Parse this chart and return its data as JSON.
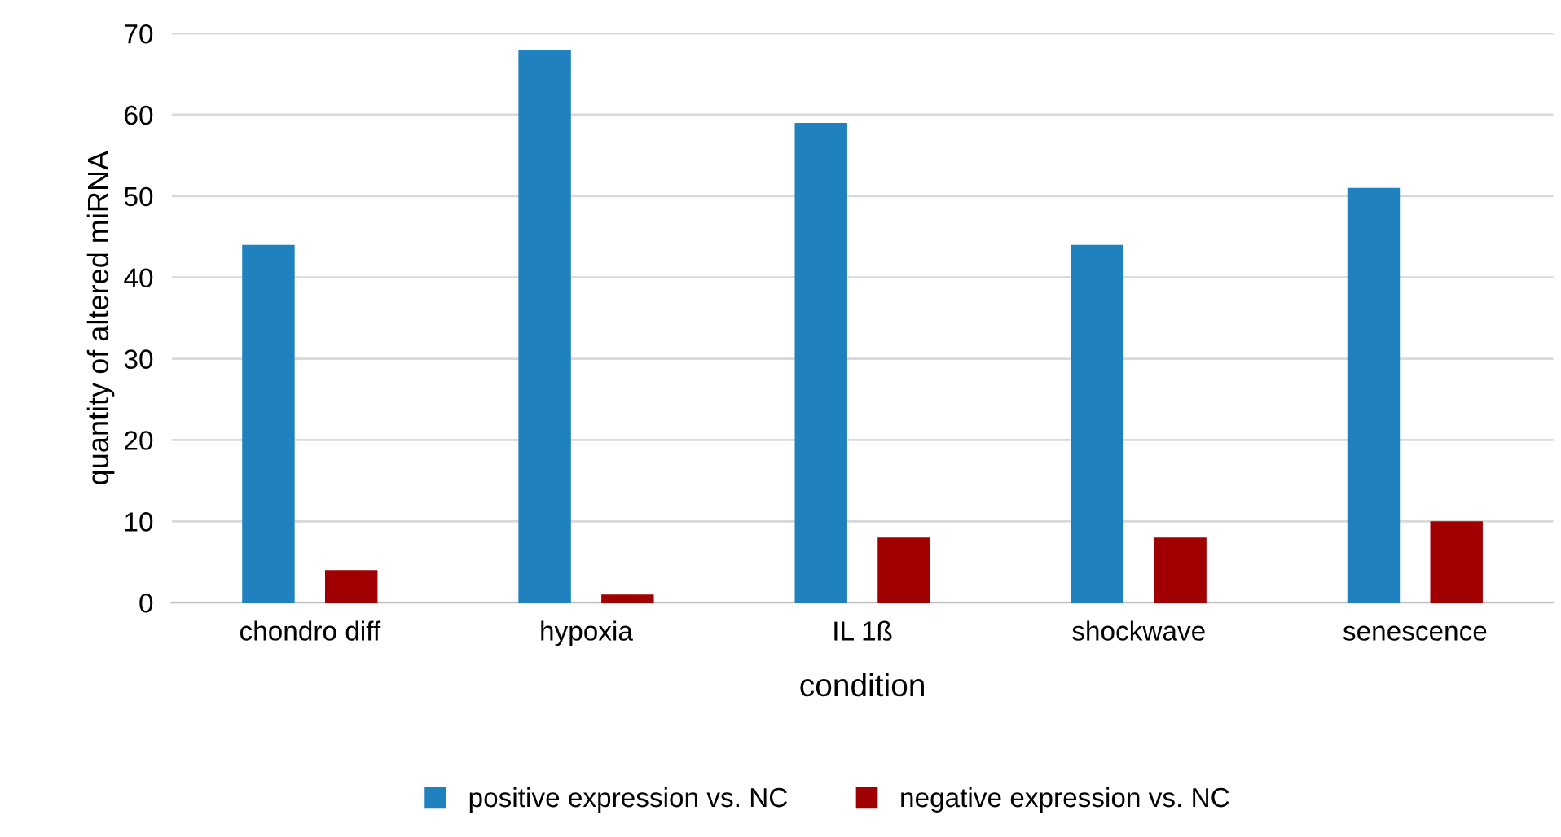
{
  "chart_data": {
    "type": "bar",
    "xlabel": "condition",
    "ylabel": "quantity of altered miRNA",
    "categories": [
      "chondro diff",
      "hypoxia",
      "IL 1ß",
      "shockwave",
      "senescence"
    ],
    "series": [
      {
        "name": "positive expression vs. NC",
        "color": "#1f81bd",
        "values": [
          44,
          68,
          59,
          44,
          51
        ]
      },
      {
        "name": "negative expression vs. NC",
        "color": "#a00000",
        "values": [
          4,
          1,
          8,
          8,
          10
        ]
      }
    ],
    "ylim": [
      0,
      70
    ],
    "yticks": [
      0,
      10,
      20,
      30,
      40,
      50,
      60,
      70
    ],
    "grid": "y",
    "legend": "bottom"
  }
}
